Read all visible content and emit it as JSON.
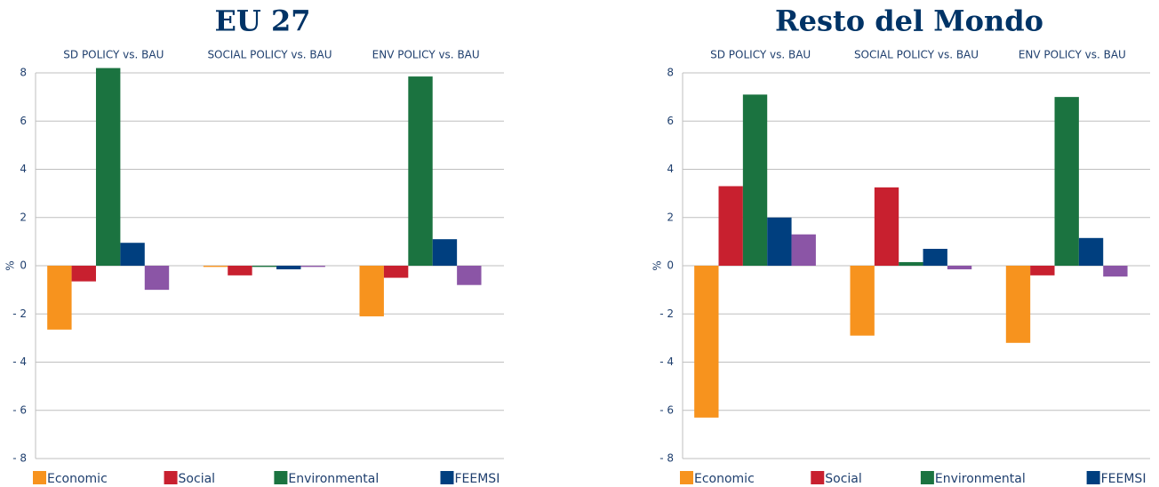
{
  "chart_data": [
    {
      "type": "bar",
      "title": "EU 27",
      "y_label": "%",
      "categories": [
        "SD POLICY vs. BAU",
        "SOCIAL POLICY vs. BAU",
        "ENV POLICY vs. BAU"
      ],
      "series": [
        {
          "name": "Economic",
          "color": "#f7931e",
          "values": [
            -2.65,
            -0.05,
            -2.1
          ]
        },
        {
          "name": "Social",
          "color": "#c8202f",
          "values": [
            -0.65,
            -0.4,
            -0.5
          ]
        },
        {
          "name": "Environmental",
          "color": "#1b7340",
          "values": [
            8.2,
            -0.05,
            7.85
          ]
        },
        {
          "name": "FEEMSI",
          "color": "#003f7f",
          "values": [
            0.95,
            -0.15,
            1.1
          ]
        },
        {
          "color": "#8b55a6",
          "values": [
            -1.0,
            -0.05,
            -0.8
          ]
        }
      ],
      "ylim": [
        -8,
        8
      ],
      "yticks": [
        {
          "value": -8,
          "label": "- 8"
        },
        {
          "value": -6,
          "label": "- 6"
        },
        {
          "value": -4,
          "label": "- 4"
        },
        {
          "value": -2,
          "label": "- 2"
        },
        0,
        2,
        4,
        6,
        8
      ],
      "grid": true,
      "legend": "bottom"
    },
    {
      "type": "bar",
      "title": "Resto del Mondo",
      "y_label": "%",
      "categories": [
        "SD POLICY vs. BAU",
        "SOCIAL POLICY vs. BAU",
        "ENV POLICY vs. BAU"
      ],
      "series": [
        {
          "name": "Economic",
          "color": "#f7931e",
          "values": [
            -6.3,
            -2.9,
            -3.2
          ]
        },
        {
          "name": "Social",
          "color": "#c8202f",
          "values": [
            3.3,
            3.25,
            -0.4
          ]
        },
        {
          "name": "Environmental",
          "color": "#1b7340",
          "values": [
            7.1,
            0.15,
            7.0
          ]
        },
        {
          "name": "FEEMSI",
          "color": "#003f7f",
          "values": [
            2.0,
            0.7,
            1.15
          ]
        },
        {
          "color": "#8b55a6",
          "values": [
            1.3,
            -0.15,
            -0.45
          ]
        }
      ],
      "ylim": [
        -8,
        8
      ],
      "yticks": [
        {
          "value": -8,
          "label": "- 8"
        },
        {
          "value": -6,
          "label": "- 6"
        },
        {
          "value": -4,
          "label": "- 4"
        },
        {
          "value": -2,
          "label": "- 2"
        },
        0,
        2,
        4,
        6,
        8
      ],
      "grid": true,
      "legend": "bottom"
    }
  ]
}
